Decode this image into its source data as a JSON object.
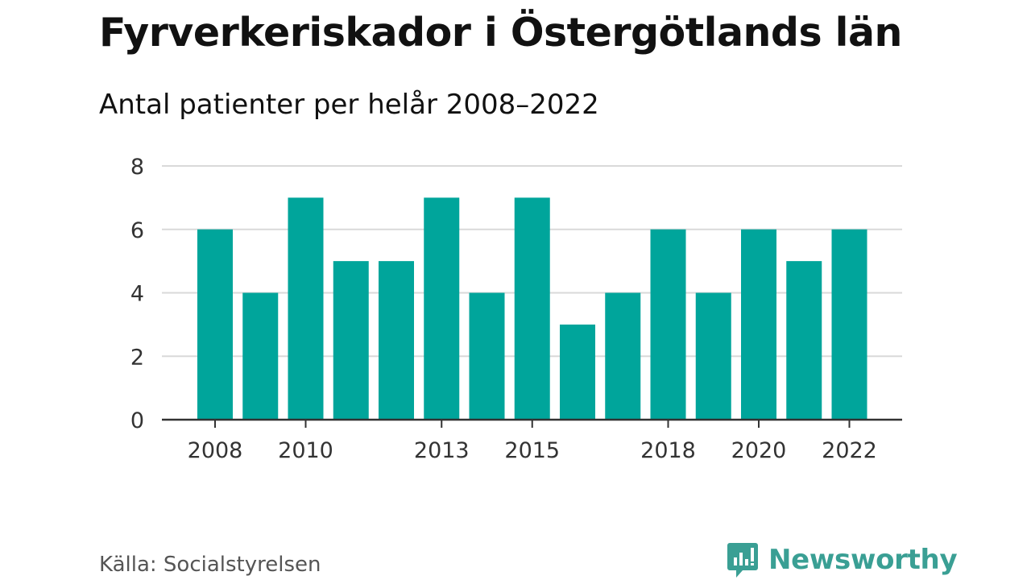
{
  "title": "Fyrverkeriskador i Östergötlands län",
  "subtitle": "Antal patienter per helår 2008–2022",
  "source": "Källa: Socialstyrelsen",
  "brand": {
    "name": "Newsworthy",
    "color": "#3a9f94"
  },
  "chart_data": {
    "type": "bar",
    "categories": [
      "2008",
      "2009",
      "2010",
      "2011",
      "2012",
      "2013",
      "2014",
      "2015",
      "2016",
      "2017",
      "2018",
      "2019",
      "2020",
      "2021",
      "2022"
    ],
    "values": [
      6,
      4,
      7,
      5,
      5,
      7,
      4,
      7,
      3,
      4,
      6,
      4,
      6,
      5,
      6
    ],
    "x_tick_labels": [
      "2008",
      "2010",
      "2013",
      "2015",
      "2018",
      "2020",
      "2022"
    ],
    "y_ticks": [
      0,
      2,
      4,
      6,
      8
    ],
    "ylim": [
      0,
      8
    ],
    "grid": true,
    "bar_color": "#00a59b",
    "grid_color": "#d9d9d9"
  }
}
